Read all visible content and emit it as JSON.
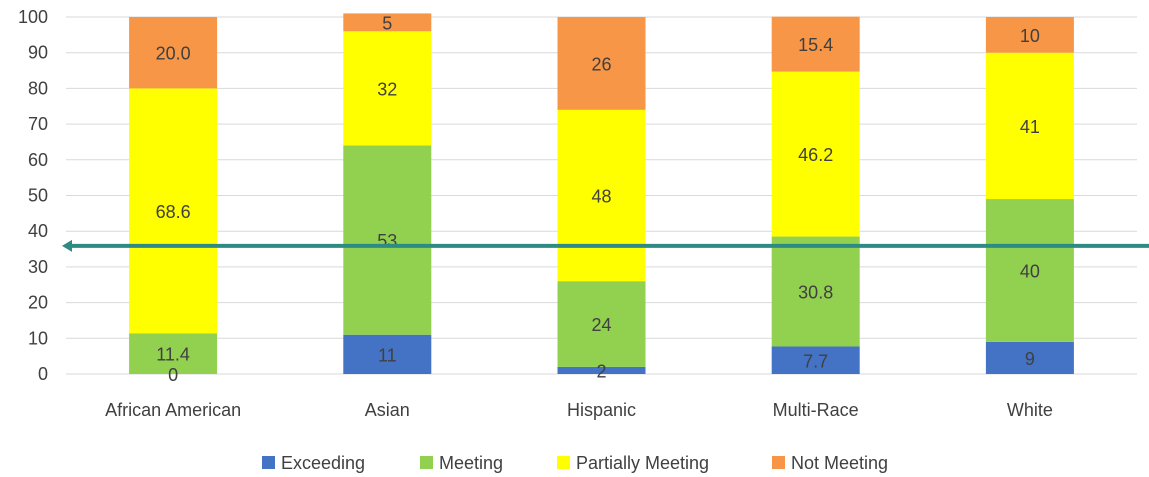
{
  "chart_data": {
    "type": "bar",
    "stacked": true,
    "categories": [
      "African American",
      "Asian",
      "Hispanic",
      "Multi-Race",
      "White"
    ],
    "series": [
      {
        "name": "Exceeding",
        "color": "#4472c4",
        "values": [
          0,
          11,
          2,
          7.7,
          9
        ],
        "labels": [
          "0",
          "11",
          "2",
          "7.7",
          "9"
        ]
      },
      {
        "name": "Meeting",
        "color": "#92d050",
        "values": [
          11.4,
          53,
          24,
          30.8,
          40
        ],
        "labels": [
          "11.4",
          "53",
          "24",
          "30.8",
          "40"
        ]
      },
      {
        "name": "Partially Meeting",
        "color": "#ffff00",
        "values": [
          68.6,
          32,
          48,
          46.2,
          41
        ],
        "labels": [
          "68.6",
          "32",
          "48",
          "46.2",
          "41"
        ]
      },
      {
        "name": "Not Meeting",
        "color": "#f79646",
        "values": [
          20.0,
          5,
          26,
          15.4,
          10
        ],
        "labels": [
          "20.0",
          "5",
          "26",
          "15.4",
          "10"
        ]
      }
    ],
    "ylim": [
      0,
      100
    ],
    "yticks": [
      "0",
      "10",
      "20",
      "30",
      "40",
      "50",
      "60",
      "70",
      "80",
      "90",
      "100"
    ],
    "grid": true,
    "legend": "bottom",
    "reference_line": {
      "value": 37,
      "color": "#2e8b84"
    }
  }
}
